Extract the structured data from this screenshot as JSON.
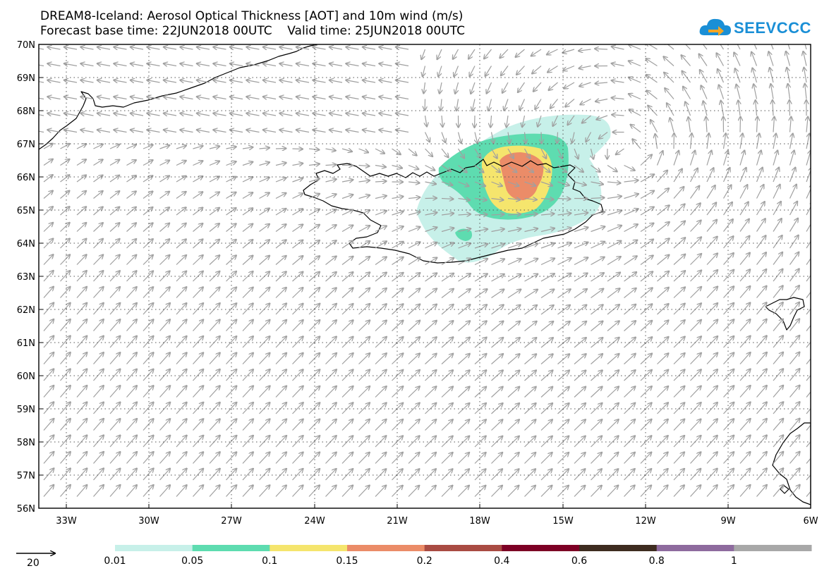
{
  "header": {
    "title_line1": "DREAM8-Iceland: Aerosol Optical Thickness [AOT] and 10m wind (m/s)",
    "title_line2": "Forecast base time: 22JUN2018 00UTC    Valid time: 25JUN2018 00UTC"
  },
  "logo": {
    "text": "SEEVCCC",
    "icon": "cloud-arrow-icon",
    "color": "#1a8fd6"
  },
  "map": {
    "lat_labels": [
      "70N",
      "69N",
      "68N",
      "67N",
      "66N",
      "65N",
      "64N",
      "63N",
      "62N",
      "61N",
      "60N",
      "59N",
      "58N",
      "57N",
      "56N"
    ],
    "lon_labels": [
      "33W",
      "30W",
      "27W",
      "24W",
      "21W",
      "18W",
      "15W",
      "12W",
      "9W",
      "6W"
    ],
    "land_outline_color": "#000000",
    "wind_arrow_color": "#a0a0a0",
    "gridline_style": "dotted"
  },
  "wind_reference": {
    "value": "20"
  },
  "colorbar": {
    "colors": [
      "#c7f0e9",
      "#5edcb0",
      "#f5e56d",
      "#eb8c68",
      "#a94b43",
      "#7d0025",
      "#3e2c20",
      "#8e6b9e",
      "#a8a8a8"
    ],
    "labels": [
      "0.01",
      "0.05",
      "0.1",
      "0.15",
      "0.2",
      "0.4",
      "0.6",
      "0.8",
      "1"
    ]
  }
}
